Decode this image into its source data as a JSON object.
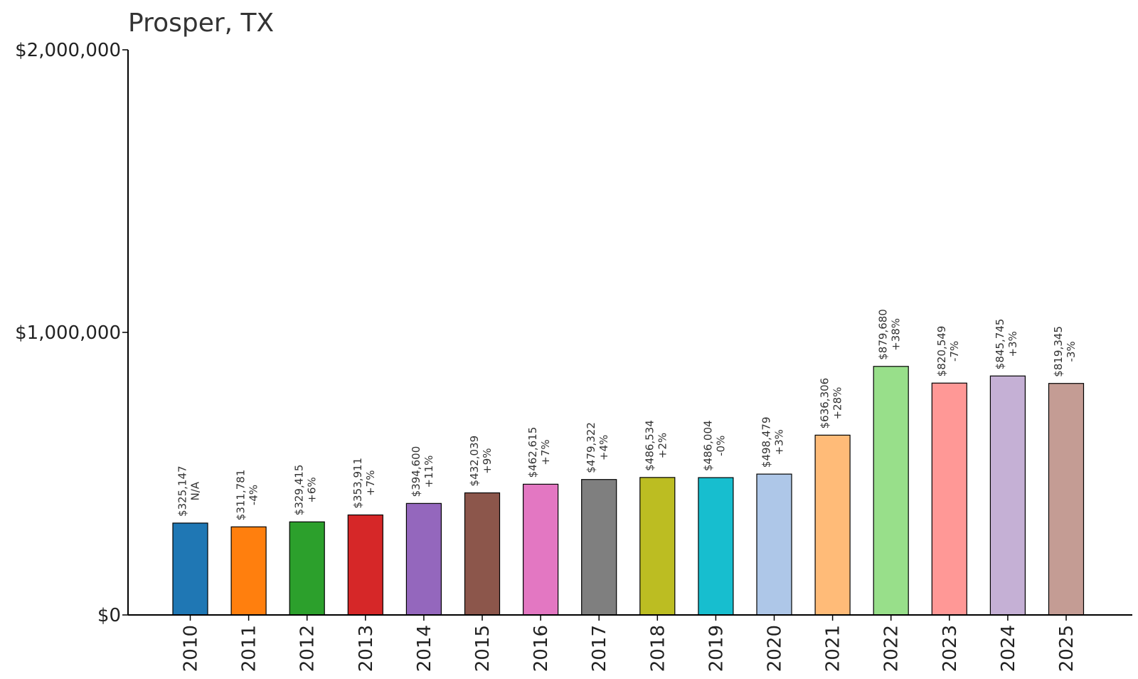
{
  "chart_data": {
    "type": "bar",
    "title": "Prosper, TX",
    "xlabel": "",
    "ylabel": "",
    "ylim": [
      0,
      2000000
    ],
    "yticks": [
      {
        "value": 0,
        "label": "$0"
      },
      {
        "value": 1000000,
        "label": "$1,000,000"
      },
      {
        "value": 2000000,
        "label": "$2,000,000"
      }
    ],
    "grid": false,
    "categories": [
      "2010",
      "2011",
      "2012",
      "2013",
      "2014",
      "2015",
      "2016",
      "2017",
      "2018",
      "2019",
      "2020",
      "2021",
      "2022",
      "2023",
      "2024",
      "2025"
    ],
    "values": [
      325147,
      311781,
      329415,
      353911,
      394600,
      432039,
      462615,
      479322,
      486534,
      486004,
      498479,
      636306,
      879680,
      820549,
      845745,
      819345
    ],
    "value_labels": [
      "$325,147",
      "$311,781",
      "$329,415",
      "$353,911",
      "$394,600",
      "$432,039",
      "$462,615",
      "$479,322",
      "$486,534",
      "$486,004",
      "$498,479",
      "$636,306",
      "$879,680",
      "$820,549",
      "$845,745",
      "$819,345"
    ],
    "change_labels": [
      "N/A",
      "-4%",
      "+6%",
      "+7%",
      "+11%",
      "+9%",
      "+7%",
      "+4%",
      "+2%",
      "-0%",
      "+3%",
      "+28%",
      "+38%",
      "-7%",
      "+3%",
      "-3%"
    ],
    "colors": [
      "#1f77b4",
      "#ff7f0e",
      "#2ca02c",
      "#d62728",
      "#9467bd",
      "#8c564b",
      "#e377c2",
      "#7f7f7f",
      "#bcbd22",
      "#17becf",
      "#aec7e8",
      "#ffbb78",
      "#98df8a",
      "#ff9896",
      "#c5b0d5",
      "#c49c94"
    ]
  }
}
